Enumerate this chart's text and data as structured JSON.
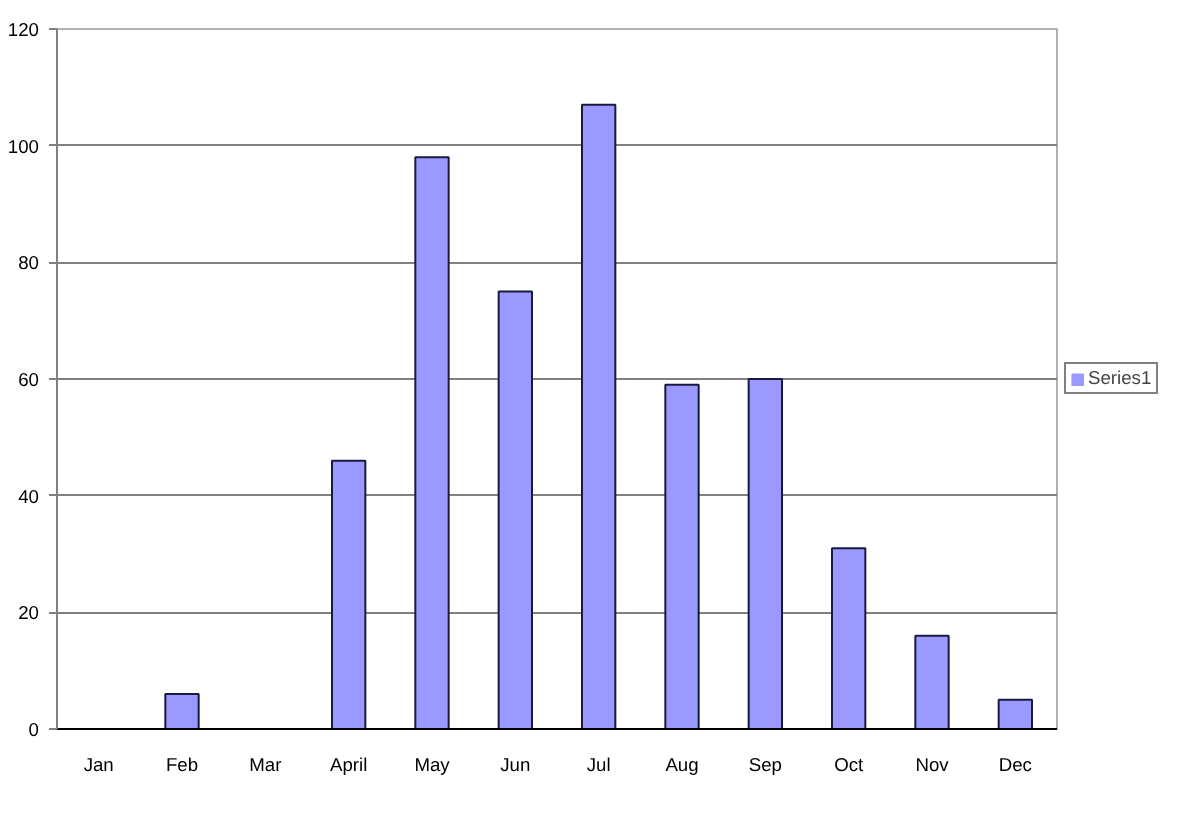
{
  "chart_data": {
    "type": "bar",
    "categories": [
      "Jan",
      "Feb",
      "Mar",
      "April",
      "May",
      "Jun",
      "Jul",
      "Aug",
      "Sep",
      "Oct",
      "Nov",
      "Dec"
    ],
    "series": [
      {
        "name": "Series1",
        "color": "#9999ff",
        "values": [
          0,
          6,
          0,
          46,
          98,
          75,
          107,
          59,
          60,
          31,
          16,
          5
        ]
      }
    ],
    "ylim": [
      0,
      120
    ],
    "yticks": [
      0,
      20,
      40,
      60,
      80,
      100,
      120
    ],
    "grid": "y",
    "legend": "right"
  }
}
